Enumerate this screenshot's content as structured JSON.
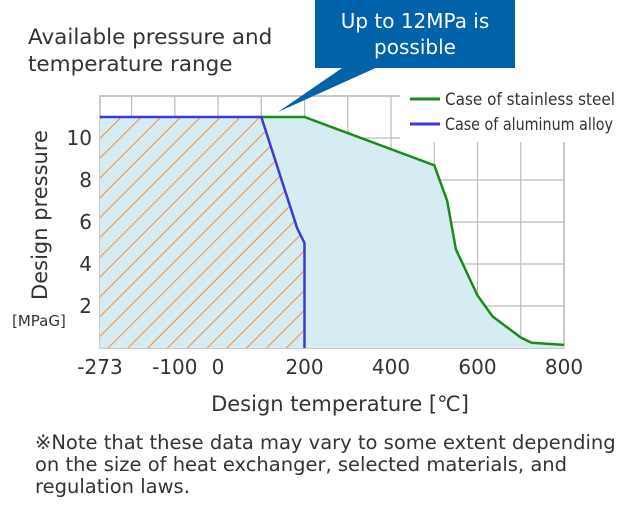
{
  "heading": "Available pressure and temperature range",
  "heading_lines": [
    "Available pressure and",
    "temperature range"
  ],
  "callout": {
    "lines": [
      "Up to 12MPa is",
      "possible"
    ],
    "color": "#0062a9"
  },
  "note": "※Note that these data may vary to some extent depending on the size of heat exchanger, selected materials, and regulation laws.",
  "chart_data": {
    "type": "area",
    "xlabel": "Design temperature [℃]",
    "ylabel": "Design pressure",
    "yunit": "[MPaG]",
    "xlim": [
      -273,
      800
    ],
    "ylim": [
      0,
      12
    ],
    "x_gridlines": [
      -200,
      -100,
      0,
      100,
      200,
      300,
      400,
      500,
      600,
      700,
      800
    ],
    "y_gridlines": [
      2,
      4,
      6,
      8,
      10,
      12
    ],
    "x_ticks": [
      -273,
      -100,
      0,
      200,
      400,
      600,
      800
    ],
    "y_ticks": [
      2,
      4,
      6,
      8,
      10
    ],
    "grid": true,
    "legend_position": "top-right",
    "series": [
      {
        "name": "Case of stainless steel",
        "color": "#1a8a1a",
        "fill": "#d5ecf2",
        "points": [
          [
            -273,
            11
          ],
          [
            100,
            11
          ],
          [
            200,
            11
          ],
          [
            500,
            8.7
          ],
          [
            530,
            7.0
          ],
          [
            550,
            4.7
          ],
          [
            600,
            2.5
          ],
          [
            635,
            1.5
          ],
          [
            700,
            0.5
          ],
          [
            725,
            0.25
          ],
          [
            800,
            0.15
          ]
        ]
      },
      {
        "name": "Case of aluminum alloy",
        "color": "#3a3ad6",
        "fill": "hatch-orange",
        "hatch_color": "#f7923a",
        "points": [
          [
            -273,
            11
          ],
          [
            100,
            11
          ],
          [
            183,
            5.7
          ],
          [
            200,
            5.0
          ],
          [
            200,
            0
          ]
        ]
      }
    ]
  }
}
